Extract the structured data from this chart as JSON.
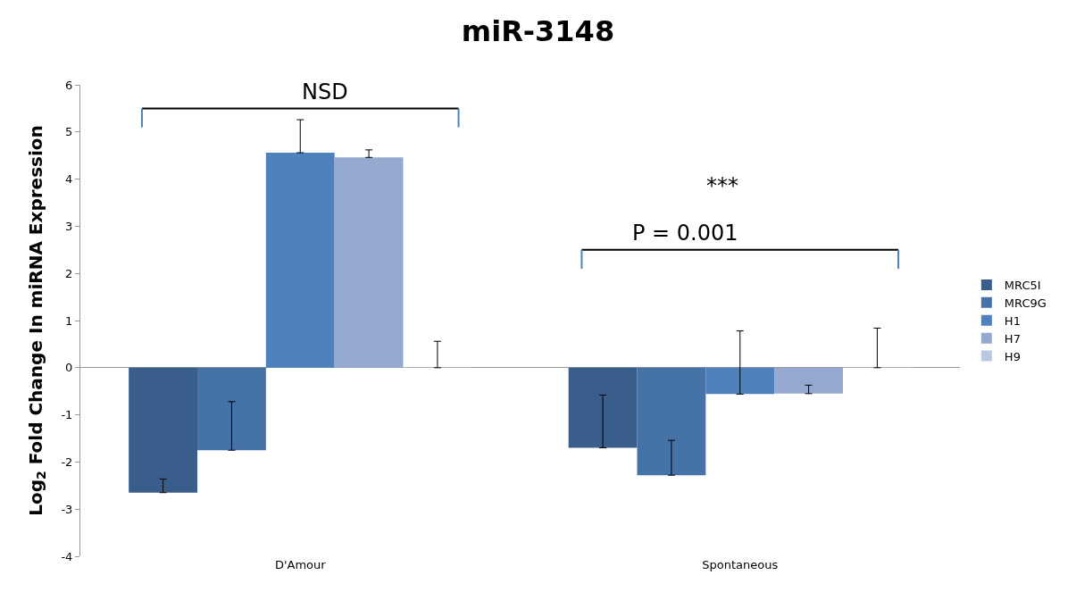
{
  "chart_data": {
    "type": "bar",
    "title": "miR-3148",
    "ylabel": "Log$_{2}$ Fold Change In miRNA Expression",
    "categories": [
      "D'Amour",
      "Spontaneous"
    ],
    "series": [
      {
        "name": "MRC5I",
        "color": "#3a5e8c",
        "values": [
          -2.65,
          -1.7
        ],
        "errors": [
          [
            -2.65,
            -2.36
          ],
          [
            -1.7,
            -0.58
          ]
        ]
      },
      {
        "name": "MRC9G",
        "color": "#4572a7",
        "values": [
          -1.75,
          -2.28
        ],
        "errors": [
          [
            -1.75,
            -0.72
          ],
          [
            -2.28,
            -1.54
          ]
        ]
      },
      {
        "name": "H1",
        "color": "#4f81bd",
        "values": [
          4.56,
          -0.56
        ],
        "errors": [
          [
            4.56,
            5.26
          ],
          [
            -0.56,
            0.78
          ]
        ]
      },
      {
        "name": "H7",
        "color": "#95a9d0",
        "values": [
          4.46,
          -0.55
        ],
        "errors": [
          [
            4.46,
            4.62
          ],
          [
            -0.55,
            -0.37
          ]
        ]
      },
      {
        "name": "H9",
        "color": "#b9c8e2",
        "values": [
          0,
          0
        ],
        "errors": [
          [
            0,
            0.56
          ],
          [
            0,
            0.84
          ]
        ]
      }
    ],
    "ylim": [
      -4,
      6
    ],
    "yticks": [
      -4,
      -3,
      -2,
      -1,
      0,
      1,
      2,
      3,
      4,
      5,
      6
    ],
    "legend": "right",
    "annotations": [
      "NSD",
      "***",
      "P = 0.001"
    ]
  }
}
